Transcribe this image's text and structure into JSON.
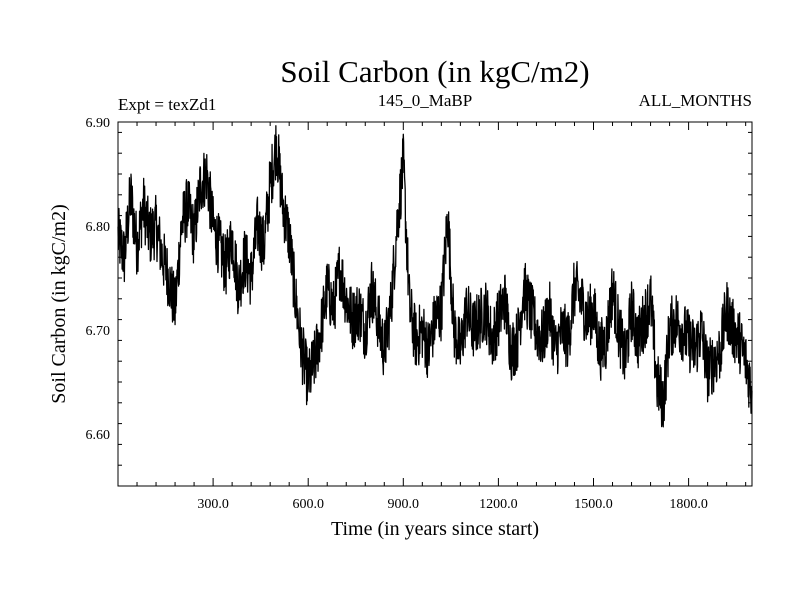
{
  "chart_data": {
    "type": "line",
    "title": "Soil Carbon (in kgC/m2)",
    "subtitle_left": "Expt = texZd1",
    "subtitle_center": "145_0_MaBP",
    "subtitle_right": "ALL_MONTHS",
    "xlabel": "Time (in years since start)",
    "ylabel": "Soil Carbon (in kgC/m2)",
    "xlim": [
      0,
      2000
    ],
    "ylim": [
      6.55,
      6.9
    ],
    "x_ticks": [
      300,
      600,
      900,
      1200,
      1500,
      1800
    ],
    "x_tick_labels": [
      "300.0",
      "600.0",
      "900.0",
      "1200.0",
      "1500.0",
      "1800.0"
    ],
    "y_ticks": [
      6.6,
      6.7,
      6.8,
      6.9
    ],
    "y_tick_labels": [
      "6.60",
      "6.70",
      "6.80",
      "6.90"
    ],
    "series": [
      {
        "name": "Soil Carbon",
        "color": "#000000",
        "x": [
          0,
          20,
          40,
          60,
          80,
          100,
          120,
          140,
          160,
          180,
          200,
          220,
          240,
          260,
          280,
          300,
          320,
          340,
          360,
          380,
          400,
          420,
          440,
          460,
          480,
          500,
          520,
          540,
          560,
          580,
          600,
          620,
          640,
          660,
          680,
          700,
          720,
          740,
          760,
          780,
          800,
          820,
          840,
          860,
          880,
          900,
          920,
          940,
          960,
          980,
          1000,
          1020,
          1040,
          1060,
          1080,
          1100,
          1120,
          1140,
          1160,
          1180,
          1200,
          1220,
          1240,
          1260,
          1280,
          1300,
          1320,
          1340,
          1360,
          1380,
          1400,
          1420,
          1440,
          1460,
          1480,
          1500,
          1520,
          1540,
          1560,
          1580,
          1600,
          1620,
          1640,
          1660,
          1680,
          1700,
          1720,
          1740,
          1760,
          1780,
          1800,
          1820,
          1840,
          1860,
          1880,
          1900,
          1920,
          1940,
          1960,
          1980,
          2000
        ],
        "values": [
          6.79,
          6.77,
          6.83,
          6.78,
          6.82,
          6.79,
          6.8,
          6.77,
          6.75,
          6.72,
          6.8,
          6.82,
          6.79,
          6.84,
          6.85,
          6.8,
          6.78,
          6.76,
          6.79,
          6.74,
          6.77,
          6.75,
          6.8,
          6.78,
          6.84,
          6.88,
          6.82,
          6.79,
          6.73,
          6.68,
          6.65,
          6.67,
          6.7,
          6.74,
          6.72,
          6.76,
          6.73,
          6.71,
          6.72,
          6.7,
          6.74,
          6.71,
          6.68,
          6.72,
          6.8,
          6.86,
          6.72,
          6.69,
          6.7,
          6.68,
          6.71,
          6.72,
          6.81,
          6.7,
          6.68,
          6.72,
          6.7,
          6.71,
          6.72,
          6.69,
          6.71,
          6.73,
          6.68,
          6.69,
          6.74,
          6.72,
          6.7,
          6.69,
          6.72,
          6.68,
          6.7,
          6.69,
          6.74,
          6.73,
          6.71,
          6.72,
          6.68,
          6.69,
          6.74,
          6.7,
          6.67,
          6.72,
          6.69,
          6.71,
          6.73,
          6.65,
          6.63,
          6.7,
          6.71,
          6.7,
          6.69,
          6.68,
          6.7,
          6.66,
          6.67,
          6.68,
          6.72,
          6.7,
          6.69,
          6.67,
          6.64
        ]
      }
    ]
  }
}
